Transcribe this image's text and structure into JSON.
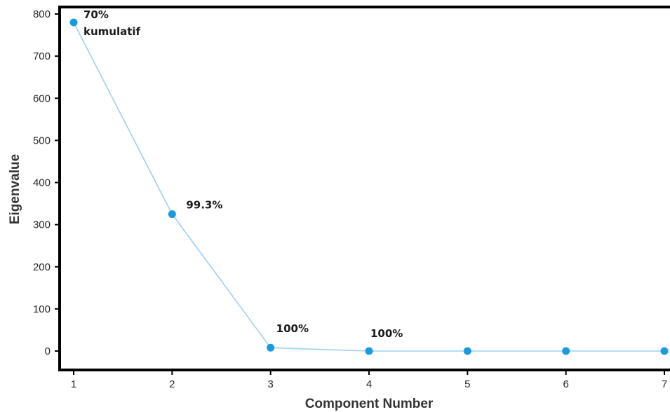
{
  "chart_data": {
    "type": "line",
    "title": "",
    "xlabel": "Component Number",
    "ylabel": "Eigenvalue",
    "x": [
      1,
      2,
      3,
      4,
      5,
      6,
      7
    ],
    "series": [
      {
        "values": [
          780,
          325,
          8,
          0,
          0,
          0,
          0
        ]
      }
    ],
    "xlim": [
      1,
      7
    ],
    "ylim": [
      0,
      800
    ],
    "yticks": [
      0,
      100,
      200,
      300,
      400,
      500,
      600,
      700,
      800
    ],
    "xticks": [
      1,
      2,
      3,
      4,
      5,
      6,
      7
    ],
    "annotations": [
      {
        "x": 1,
        "lines": [
          "70%",
          "kumulatif"
        ]
      },
      {
        "x": 2,
        "lines": [
          "99.3%"
        ]
      },
      {
        "x": 3,
        "lines": [
          "100%"
        ]
      },
      {
        "x": 4,
        "lines": [
          "100%"
        ]
      }
    ],
    "grid": false,
    "colors": {
      "line": "#9ecff2",
      "marker": "#1a9be0",
      "frame": "#000000"
    }
  }
}
